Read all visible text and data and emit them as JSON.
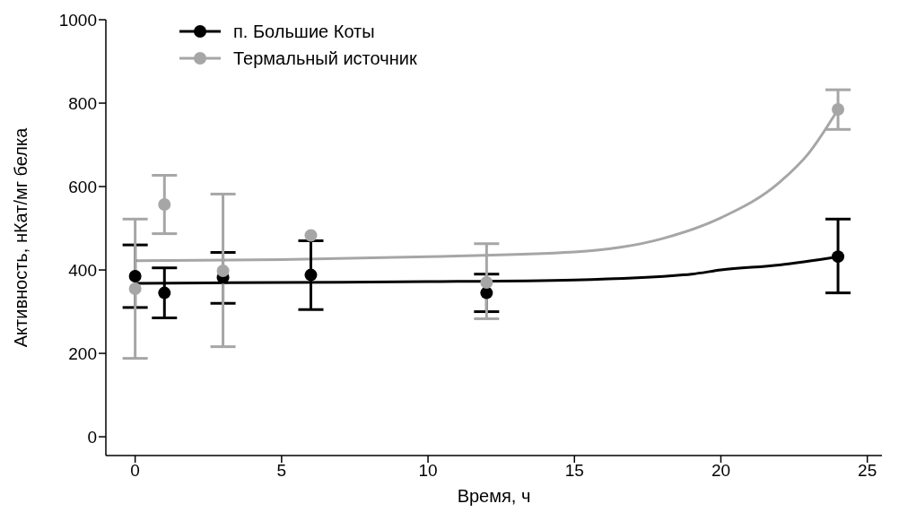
{
  "chart_data": {
    "type": "scatter",
    "xlabel": "Время, ч",
    "ylabel": "Активность, нКат/мг белка",
    "xlim": [
      -1,
      25.5
    ],
    "xticks": [
      0,
      5,
      10,
      15,
      20,
      25
    ],
    "ylim": [
      -45,
      1000
    ],
    "yticks": [
      0,
      200,
      400,
      600,
      800,
      1000
    ],
    "grid": false,
    "legend": "top left",
    "marker": "circle",
    "series": [
      {
        "name": "п. Большие Коты",
        "color": "#000000",
        "x": [
          0,
          1,
          3,
          6,
          12,
          24
        ],
        "values": [
          385,
          345,
          382,
          388,
          345,
          432
        ],
        "errors": [
          [
            310,
            460
          ],
          [
            285,
            405
          ],
          [
            320,
            442
          ],
          [
            305,
            470
          ],
          [
            300,
            390
          ],
          [
            345,
            522
          ]
        ]
      },
      {
        "name": "Термальный источник",
        "color": "#a6a6a6",
        "x": [
          0,
          1,
          3,
          6,
          12,
          24
        ],
        "values": [
          355,
          557,
          398,
          483,
          370,
          785
        ],
        "errors": [
          [
            188,
            522
          ],
          [
            487,
            627
          ],
          [
            216,
            582
          ],
          null,
          [
            283,
            463
          ],
          [
            737,
            832
          ]
        ]
      },
      {
        "type": "line",
        "color": "#000000",
        "marker": "none",
        "x": [
          0,
          5,
          10,
          15,
          19,
          20,
          22,
          24
        ],
        "values": [
          368,
          370,
          372,
          376,
          390,
          400,
          412,
          432
        ]
      },
      {
        "type": "line",
        "color": "#a6a6a6",
        "marker": "none",
        "x": [
          0,
          5,
          10,
          15,
          18,
          20,
          22,
          23,
          24
        ],
        "values": [
          422,
          425,
          432,
          443,
          475,
          525,
          610,
          680,
          785
        ]
      }
    ]
  }
}
